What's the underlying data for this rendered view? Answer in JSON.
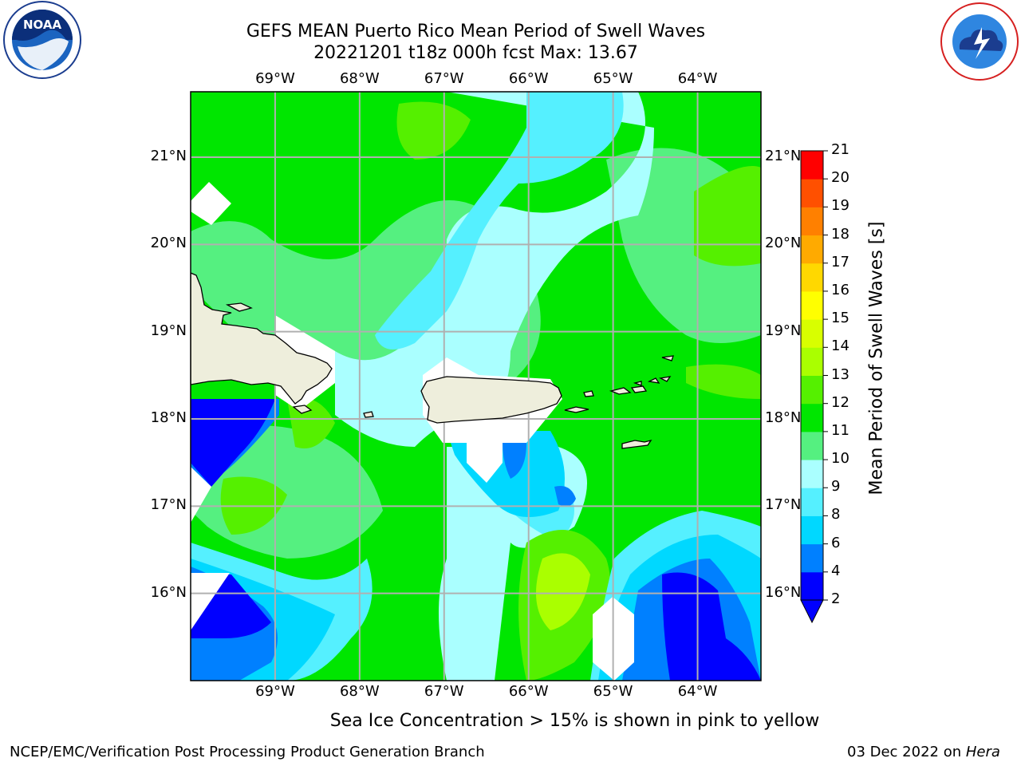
{
  "header": {
    "title_line1": "GEFS MEAN Puerto Rico Mean Period of Swell Waves",
    "title_line2": "20221201 t18z 000h fcst   Max: 13.67"
  },
  "logos": {
    "left": "noaa-logo",
    "right": "nws-logo",
    "left_text": "NOAA",
    "left_ring_text": "NATIONAL OCEANIC AND ATMOSPHERIC ADMINISTRATION · U.S. DEPARTMENT OF COMMERCE",
    "right_ring_text": "NATIONAL WEATHER SERVICE"
  },
  "map": {
    "lon_labels": [
      "69°W",
      "68°W",
      "67°W",
      "66°W",
      "65°W",
      "64°W"
    ],
    "lat_labels": [
      "21°N",
      "20°N",
      "19°N",
      "18°N",
      "17°N",
      "16°N"
    ],
    "lon_values": [
      -69,
      -68,
      -67,
      -66,
      -65,
      -64
    ],
    "lat_values": [
      21,
      20,
      19,
      18,
      17,
      16
    ],
    "lon_range": [
      -70.0,
      -63.25
    ],
    "lat_range": [
      15.0,
      21.75
    ],
    "grid": true
  },
  "chart_data": {
    "type": "heatmap",
    "title": "GEFS MEAN Puerto Rico Mean Period of Swell Waves",
    "subtitle": "20221201 t18z 000h fcst   Max: 13.67",
    "max_value": 13.67,
    "colorbar_label": "Mean Period of Swell Waves [s]",
    "colorbar_ticks": [
      2,
      4,
      6,
      8,
      9,
      10,
      11,
      12,
      13,
      14,
      15,
      16,
      17,
      18,
      19,
      20,
      21
    ],
    "colorbar_colors": [
      "#0000ff",
      "#0080ff",
      "#00d8ff",
      "#55f0ff",
      "#aaffff",
      "#55f080",
      "#00e600",
      "#55f000",
      "#aaff00",
      "#d8ff00",
      "#ffff00",
      "#ffd800",
      "#ffaa00",
      "#ff8000",
      "#ff5000",
      "#ff0000"
    ],
    "extend": "min"
  },
  "footer": {
    "note": "Sea Ice Concentration > 15% is shown in pink to yellow",
    "credit": "NCEP/EMC/Verification Post Processing Product Generation Branch",
    "date": "03 Dec 2022 on ",
    "host": "Hera"
  }
}
